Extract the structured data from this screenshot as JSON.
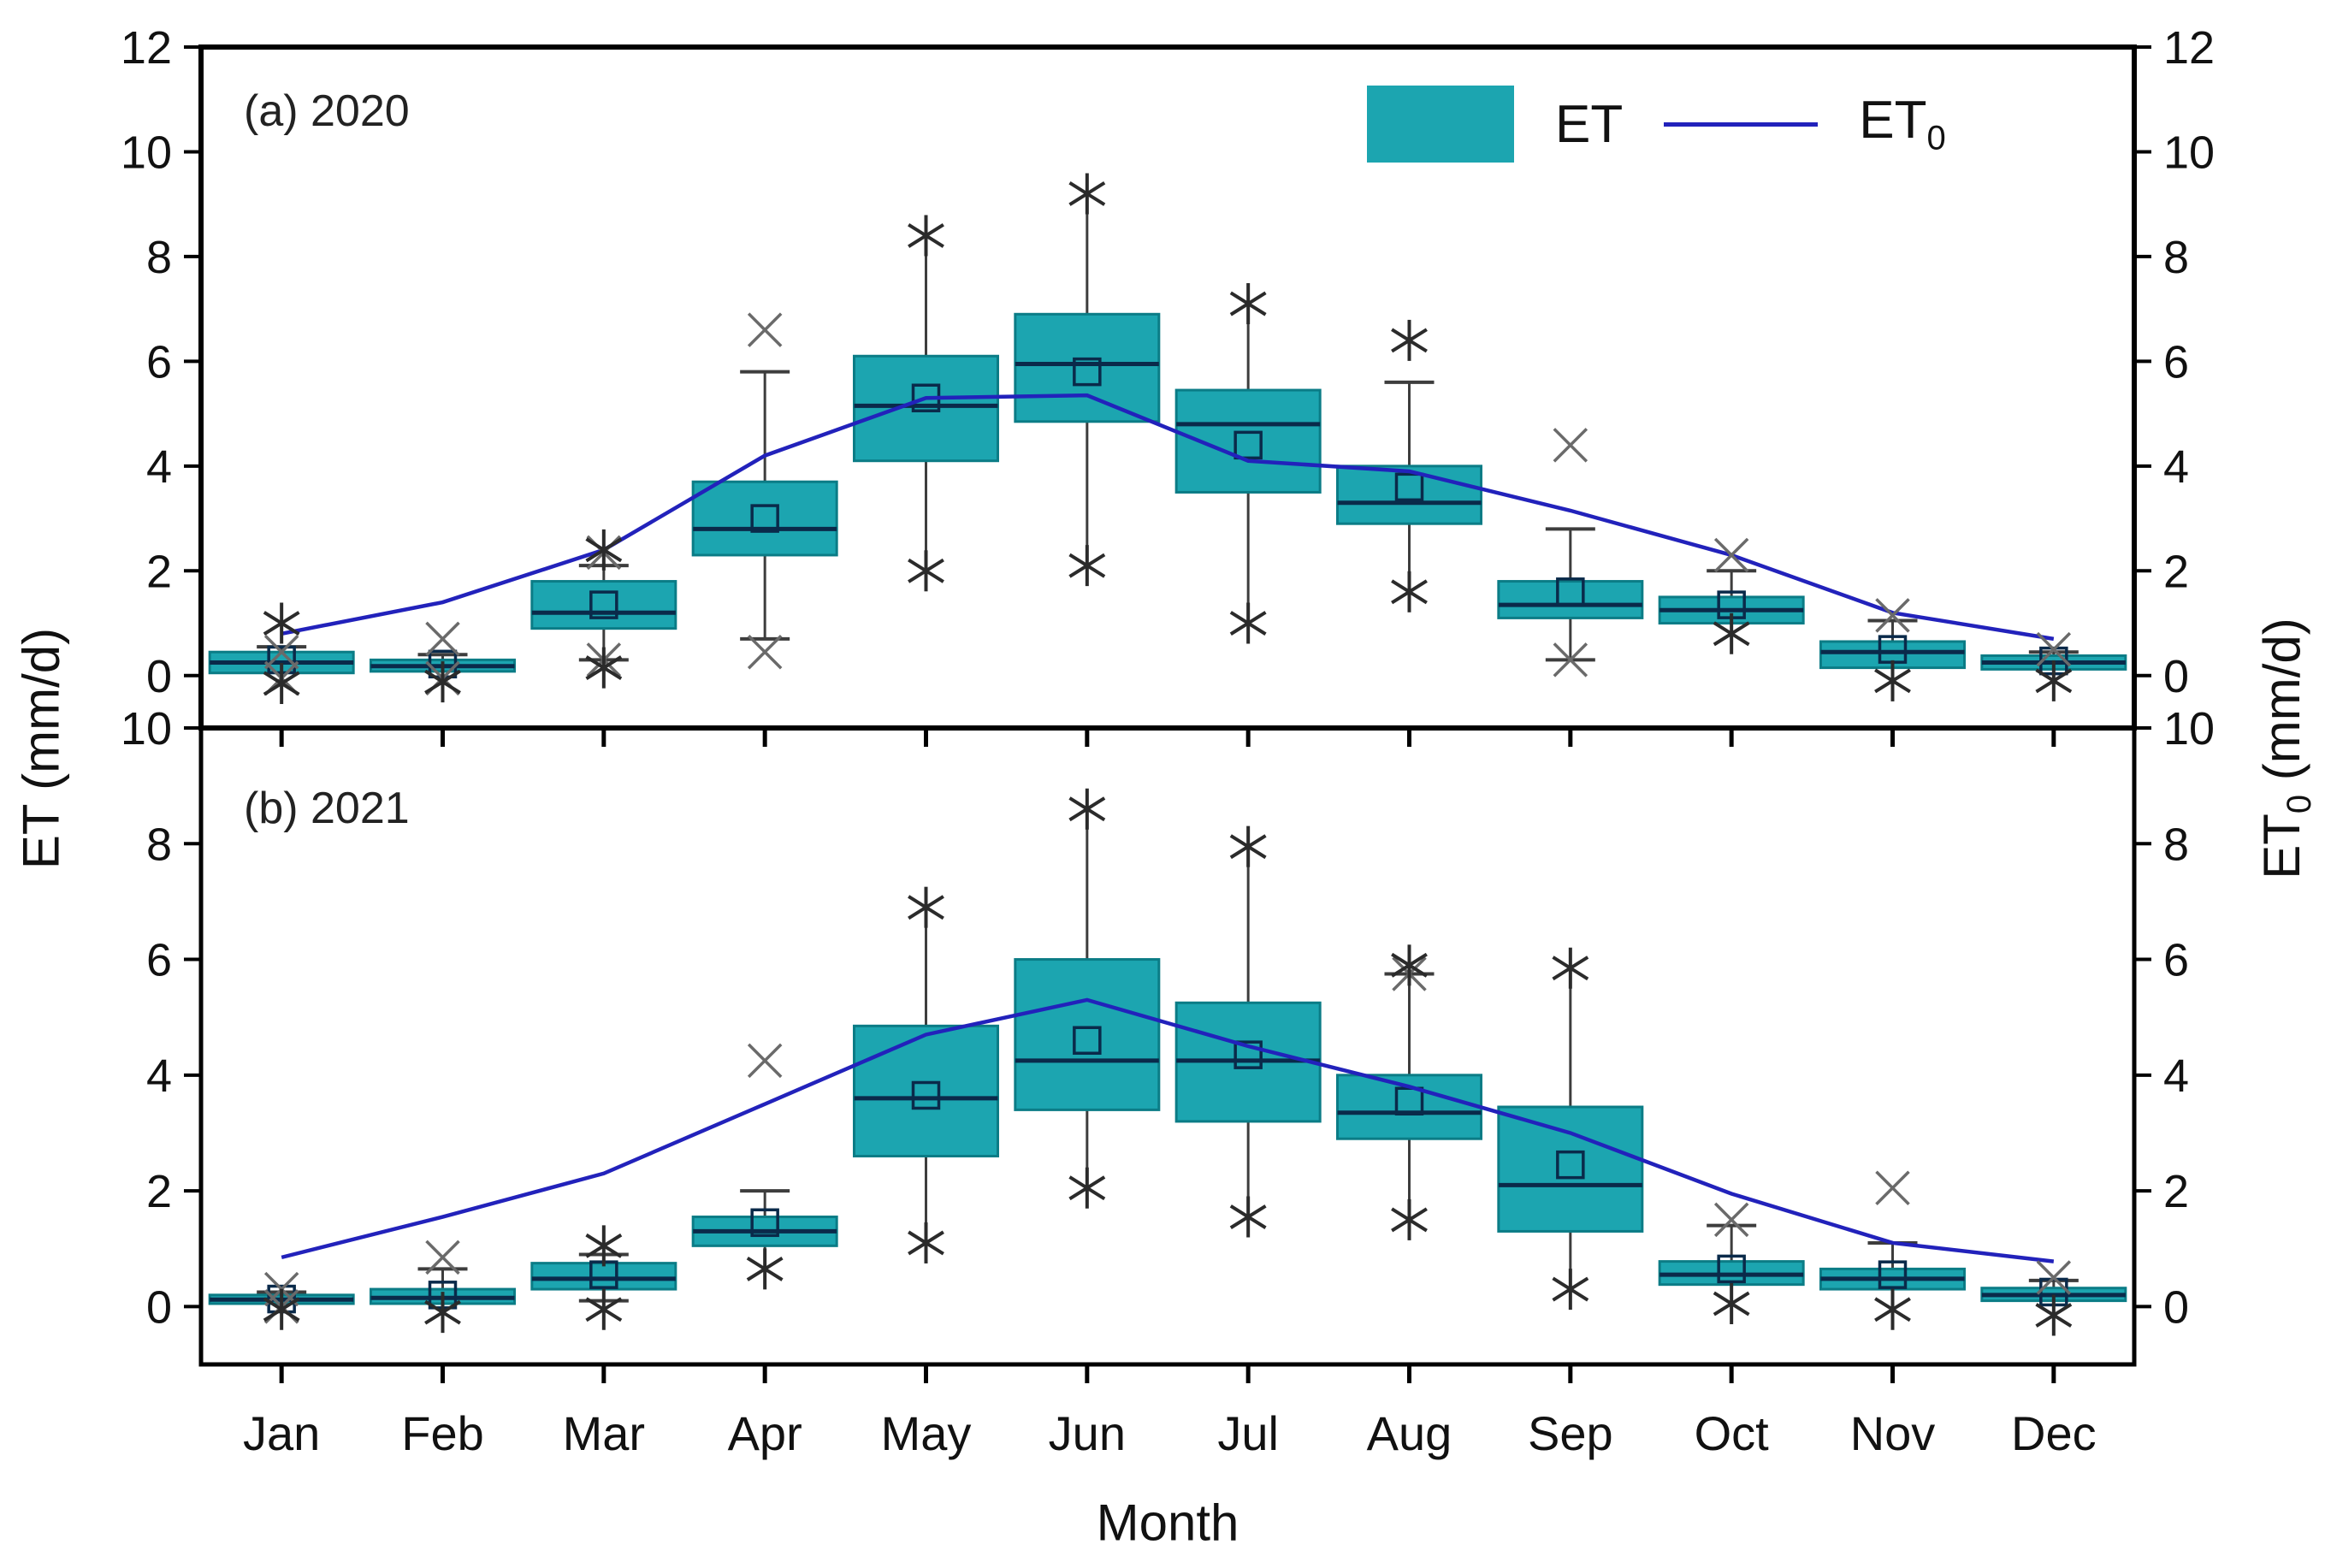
{
  "figure": {
    "x_label": "Month",
    "y_left_label": "ET (mm/d)",
    "y_right_label_pre": "ET",
    "y_right_label_sub": "0",
    "y_right_label_post": " (mm/d)",
    "legend": {
      "box_label": "ET",
      "line_label_pre": "ET",
      "line_label_sub": "0"
    },
    "colors": {
      "box_fill": "#1ca5b0",
      "box_edge": "#0b7c86",
      "median": "#0a2a4a",
      "mean_marker": "#0a2a4a",
      "et0_line": "#2222bb",
      "whisker": "#3d3d3d",
      "star": "#2b2b2b",
      "cross": "#6a6a6a",
      "frame": "#000000",
      "tick_text": "#111111"
    }
  },
  "chart_data": {
    "type": "boxplot+line",
    "categories": [
      "Jan",
      "Feb",
      "Mar",
      "Apr",
      "May",
      "Jun",
      "Jul",
      "Aug",
      "Sep",
      "Oct",
      "Nov",
      "Dec"
    ],
    "x_axis_label": "Month",
    "left_axis_label": "ET (mm/d)",
    "right_axis_label": "ET0 (mm/d)",
    "legend_entries": [
      "ET",
      "ET0"
    ],
    "panels": [
      {
        "id": "a",
        "label": "(a) 2020",
        "ylim": [
          -1,
          12
        ],
        "yticks_left": [
          12,
          10,
          8,
          6,
          4,
          2,
          0
        ],
        "yticks_right": [
          12,
          10,
          8,
          6,
          4,
          2,
          0
        ],
        "boxes": [
          {
            "m": "Jan",
            "q1": 0.05,
            "med": 0.25,
            "q3": 0.45,
            "mean": 0.3,
            "wlo": -0.05,
            "whi": 0.55,
            "x_hi": 0.45,
            "x_lo": -0.05,
            "s_hi": 1.0,
            "s_lo": -0.15
          },
          {
            "m": "Feb",
            "q1": 0.08,
            "med": 0.18,
            "q3": 0.3,
            "mean": 0.22,
            "wlo": -0.02,
            "whi": 0.4,
            "x_hi": 0.7,
            "x_lo": -0.05,
            "s_hi": null,
            "s_lo": -0.12
          },
          {
            "m": "Mar",
            "q1": 0.9,
            "med": 1.2,
            "q3": 1.8,
            "mean": 1.35,
            "wlo": 0.3,
            "whi": 2.1,
            "x_hi": 2.35,
            "x_lo": 0.3,
            "s_hi": 2.4,
            "s_lo": 0.15
          },
          {
            "m": "Apr",
            "q1": 2.3,
            "med": 2.8,
            "q3": 3.7,
            "mean": 3.0,
            "wlo": 0.7,
            "whi": 5.8,
            "x_hi": 6.6,
            "x_lo": 0.45,
            "s_hi": null,
            "s_lo": null
          },
          {
            "m": "May",
            "q1": 4.1,
            "med": 5.15,
            "q3": 6.1,
            "mean": 5.3,
            "wlo": 2.0,
            "whi": 8.4,
            "x_hi": null,
            "x_lo": null,
            "s_hi": 8.4,
            "s_lo": 2.0
          },
          {
            "m": "Jun",
            "q1": 4.85,
            "med": 5.95,
            "q3": 6.9,
            "mean": 5.8,
            "wlo": 2.1,
            "whi": 9.2,
            "x_hi": null,
            "x_lo": null,
            "s_hi": 9.2,
            "s_lo": 2.1
          },
          {
            "m": "Jul",
            "q1": 3.5,
            "med": 4.8,
            "q3": 5.45,
            "mean": 4.4,
            "wlo": 1.0,
            "whi": 7.1,
            "x_hi": null,
            "x_lo": null,
            "s_hi": 7.1,
            "s_lo": 1.0
          },
          {
            "m": "Aug",
            "q1": 2.9,
            "med": 3.3,
            "q3": 4.0,
            "mean": 3.6,
            "wlo": 1.6,
            "whi": 5.6,
            "x_hi": null,
            "x_lo": null,
            "s_hi": 6.4,
            "s_lo": 1.6
          },
          {
            "m": "Sep",
            "q1": 1.1,
            "med": 1.35,
            "q3": 1.8,
            "mean": 1.6,
            "wlo": 0.3,
            "whi": 2.8,
            "x_hi": 4.4,
            "x_lo": 0.3,
            "s_hi": null,
            "s_lo": null
          },
          {
            "m": "Oct",
            "q1": 1.0,
            "med": 1.25,
            "q3": 1.5,
            "mean": 1.35,
            "wlo": 0.8,
            "whi": 2.0,
            "x_hi": 2.3,
            "x_lo": null,
            "s_hi": null,
            "s_lo": 0.8
          },
          {
            "m": "Nov",
            "q1": 0.15,
            "med": 0.45,
            "q3": 0.65,
            "mean": 0.5,
            "wlo": -0.05,
            "whi": 1.05,
            "x_hi": 1.15,
            "x_lo": null,
            "s_hi": null,
            "s_lo": -0.1
          },
          {
            "m": "Dec",
            "q1": 0.12,
            "med": 0.25,
            "q3": 0.38,
            "mean": 0.28,
            "wlo": -0.05,
            "whi": 0.45,
            "x_hi": 0.5,
            "x_lo": null,
            "s_hi": null,
            "s_lo": -0.1
          }
        ],
        "et0": [
          0.8,
          1.4,
          2.4,
          4.2,
          5.3,
          5.35,
          4.1,
          3.9,
          3.15,
          2.3,
          1.2,
          0.7
        ]
      },
      {
        "id": "b",
        "label": "(b) 2021",
        "ylim": [
          -1,
          10
        ],
        "yticks_left": [
          10,
          8,
          6,
          4,
          2,
          0
        ],
        "yticks_right": [
          10,
          8,
          6,
          4,
          2,
          0
        ],
        "boxes": [
          {
            "m": "Jan",
            "q1": 0.05,
            "med": 0.12,
            "q3": 0.2,
            "mean": 0.13,
            "wlo": -0.02,
            "whi": 0.25,
            "x_hi": 0.3,
            "x_lo": 0.0,
            "s_hi": null,
            "s_lo": -0.05
          },
          {
            "m": "Feb",
            "q1": 0.05,
            "med": 0.15,
            "q3": 0.3,
            "mean": 0.2,
            "wlo": -0.02,
            "whi": 0.65,
            "x_hi": 0.85,
            "x_lo": null,
            "s_hi": null,
            "s_lo": -0.1
          },
          {
            "m": "Mar",
            "q1": 0.3,
            "med": 0.48,
            "q3": 0.75,
            "mean": 0.55,
            "wlo": 0.1,
            "whi": 0.9,
            "x_hi": null,
            "x_lo": null,
            "s_hi": 1.05,
            "s_lo": -0.05
          },
          {
            "m": "Apr",
            "q1": 1.05,
            "med": 1.3,
            "q3": 1.55,
            "mean": 1.45,
            "wlo": 0.65,
            "whi": 2.0,
            "x_hi": 4.25,
            "x_lo": null,
            "s_hi": null,
            "s_lo": 0.65
          },
          {
            "m": "May",
            "q1": 2.6,
            "med": 3.6,
            "q3": 4.85,
            "mean": 3.65,
            "wlo": 1.1,
            "whi": 6.9,
            "x_hi": null,
            "x_lo": null,
            "s_hi": 6.9,
            "s_lo": 1.1
          },
          {
            "m": "Jun",
            "q1": 3.4,
            "med": 4.25,
            "q3": 6.0,
            "mean": 4.6,
            "wlo": 2.05,
            "whi": 8.6,
            "x_hi": null,
            "x_lo": null,
            "s_hi": 8.6,
            "s_lo": 2.05
          },
          {
            "m": "Jul",
            "q1": 3.2,
            "med": 4.25,
            "q3": 5.25,
            "mean": 4.35,
            "wlo": 1.55,
            "whi": 7.95,
            "x_hi": null,
            "x_lo": null,
            "s_hi": 7.95,
            "s_lo": 1.55
          },
          {
            "m": "Aug",
            "q1": 2.9,
            "med": 3.35,
            "q3": 4.0,
            "mean": 3.55,
            "wlo": 1.5,
            "whi": 5.75,
            "x_hi": 5.75,
            "x_lo": null,
            "s_hi": 5.9,
            "s_lo": 1.5
          },
          {
            "m": "Sep",
            "q1": 1.3,
            "med": 2.1,
            "q3": 3.45,
            "mean": 2.45,
            "wlo": 0.3,
            "whi": 5.85,
            "x_hi": null,
            "x_lo": null,
            "s_hi": 5.85,
            "s_lo": 0.3
          },
          {
            "m": "Oct",
            "q1": 0.38,
            "med": 0.55,
            "q3": 0.78,
            "mean": 0.65,
            "wlo": 0.05,
            "whi": 1.4,
            "x_hi": 1.5,
            "x_lo": null,
            "s_hi": null,
            "s_lo": 0.05
          },
          {
            "m": "Nov",
            "q1": 0.3,
            "med": 0.48,
            "q3": 0.65,
            "mean": 0.55,
            "wlo": 0.0,
            "whi": 1.1,
            "x_hi": 2.05,
            "x_lo": null,
            "s_hi": null,
            "s_lo": -0.05
          },
          {
            "m": "Dec",
            "q1": 0.1,
            "med": 0.2,
            "q3": 0.32,
            "mean": 0.25,
            "wlo": -0.05,
            "whi": 0.45,
            "x_hi": 0.5,
            "x_lo": null,
            "s_hi": null,
            "s_lo": -0.15
          }
        ],
        "et0": [
          0.85,
          1.55,
          2.3,
          3.5,
          4.7,
          5.3,
          4.5,
          3.8,
          3.0,
          1.95,
          1.1,
          0.78
        ]
      }
    ],
    "layout_hints": {
      "grid": false,
      "legend_position": "top-right-inside",
      "panels_stacked": true
    }
  }
}
